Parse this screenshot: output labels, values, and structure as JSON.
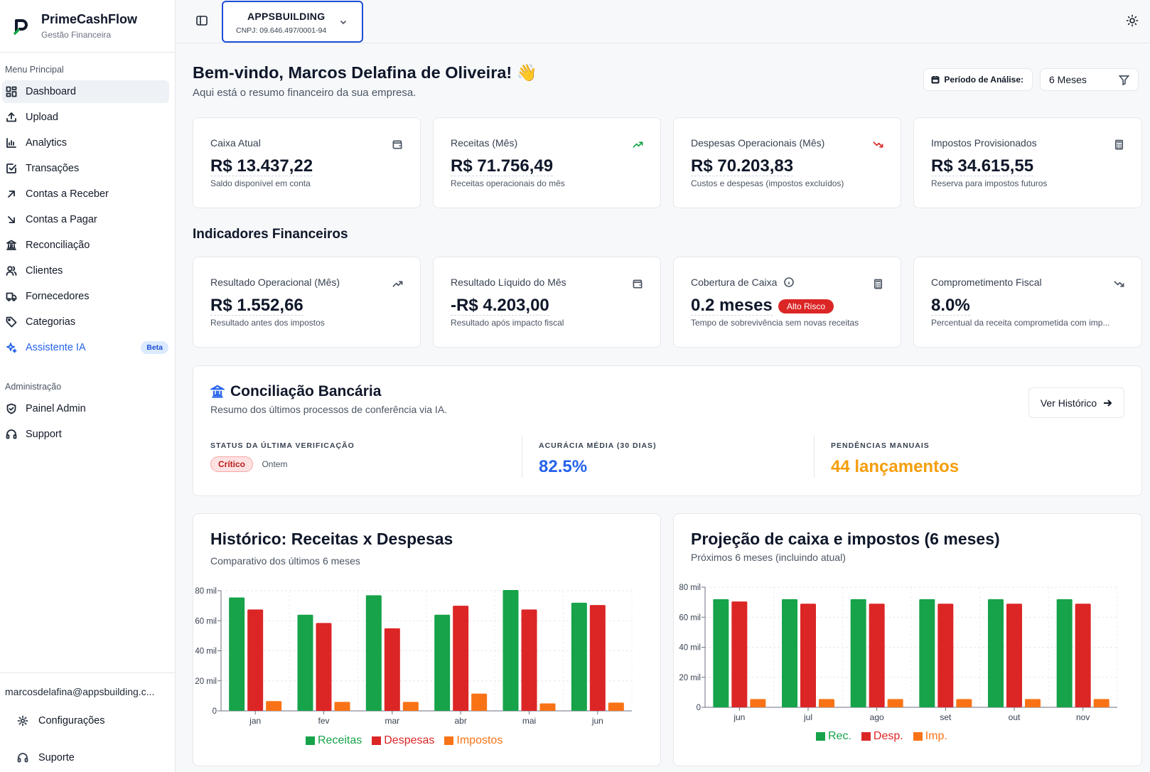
{
  "brand": {
    "name": "PrimeCashFlow",
    "subtitle": "Gestão Financeira"
  },
  "sidebar": {
    "menu_title": "Menu Principal",
    "items": [
      {
        "label": "Dashboard",
        "icon": "dashboard-icon"
      },
      {
        "label": "Upload",
        "icon": "upload-icon"
      },
      {
        "label": "Analytics",
        "icon": "bar-chart-icon"
      },
      {
        "label": "Transações",
        "icon": "checkbox-icon"
      },
      {
        "label": "Contas a Receber",
        "icon": "arrow-up-right-icon"
      },
      {
        "label": "Contas a Pagar",
        "icon": "arrow-down-right-icon"
      },
      {
        "label": "Reconciliação",
        "icon": "bank-icon"
      },
      {
        "label": "Clientes",
        "icon": "users-icon"
      },
      {
        "label": "Fornecedores",
        "icon": "truck-icon"
      },
      {
        "label": "Categorias",
        "icon": "tag-icon"
      },
      {
        "label": "Assistente IA",
        "icon": "sparkles-icon",
        "badge": "Beta"
      }
    ],
    "admin_title": "Administração",
    "admin_items": [
      {
        "label": "Painel Admin",
        "icon": "shield-icon"
      },
      {
        "label": "Support",
        "icon": "headset-icon"
      }
    ],
    "user_email": "marcosdelafina@appsbuilding.c...",
    "footer_items": [
      {
        "label": "Configurações",
        "icon": "gear-icon"
      },
      {
        "label": "Suporte",
        "icon": "headset-icon"
      }
    ]
  },
  "topbar": {
    "company": "APPSBUILDING",
    "cnpj": "CNPJ: 09.646.497/0001-94"
  },
  "welcome": {
    "title": "Bem-vindo, Marcos Delafina de Oliveira! 👋",
    "subtitle": "Aqui está o resumo financeiro da sua empresa."
  },
  "period": {
    "label": "Período de Análise:",
    "value": "6 Meses"
  },
  "kpis": [
    {
      "title": "Caixa Atual",
      "value": "R$ 13.437,22",
      "sub": "Saldo disponível em conta",
      "icon": "wallet-icon"
    },
    {
      "title": "Receitas (Mês)",
      "value": "R$ 71.756,49",
      "sub": "Receitas operacionais do mês",
      "icon": "trending-up-icon"
    },
    {
      "title": "Despesas Operacionais (Mês)",
      "value": "R$ 70.203,83",
      "sub": "Custos e despesas (impostos excluídos)",
      "icon": "trending-down-icon"
    },
    {
      "title": "Impostos Provisionados",
      "value": "R$ 34.615,55",
      "sub": "Reserva para impostos futuros",
      "icon": "calculator-icon"
    }
  ],
  "indicators_title": "Indicadores Financeiros",
  "indicators": [
    {
      "title": "Resultado Operacional (Mês)",
      "value": "R$ 1.552,66",
      "sub": "Resultado antes dos impostos",
      "icon": "trending-up-icon"
    },
    {
      "title": "Resultado Líquido do Mês",
      "value": "-R$ 4.203,00",
      "sub": "Resultado após impacto fiscal",
      "icon": "wallet-icon"
    },
    {
      "title": "Cobertura de Caixa",
      "value": "0.2 meses",
      "badge": "Alto Risco",
      "sub": "Tempo de sobrevivência sem novas receitas",
      "icon": "calculator-icon"
    },
    {
      "title": "Comprometimento Fiscal",
      "value": "8.0%",
      "sub": "Percentual da receita comprometida com imp...",
      "icon": "trending-down-icon"
    }
  ],
  "reconciliation": {
    "title": "Conciliação Bancária",
    "subtitle": "Resumo dos últimos processos de conferência via IA.",
    "button": "Ver Histórico",
    "status_label": "STATUS DA ÚLTIMA VERIFICAÇÃO",
    "status_badge": "Crítico",
    "status_when": "Ontem",
    "accuracy_label": "ACURÁCIA MÉDIA (30 DIAS)",
    "accuracy_value": "82.5%",
    "pending_label": "PENDÊNCIAS MANUAIS",
    "pending_value": "44 lançamentos"
  },
  "colors": {
    "receitas": "#16a34a",
    "despesas": "#dc2626",
    "impostos": "#f97316",
    "accent": "#2563eb",
    "pending": "#f59e0b"
  },
  "chart_data": [
    {
      "type": "bar",
      "title": "Histórico: Receitas x Despesas",
      "subtitle": "Comparativo dos últimos 6 meses",
      "categories": [
        "jan",
        "fev",
        "mar",
        "abr",
        "mai",
        "jun"
      ],
      "yticks": [
        "0",
        "20 mil",
        "40 mil",
        "60 mil",
        "80 mil"
      ],
      "ylim": [
        0,
        80000
      ],
      "series": [
        {
          "name": "Receitas",
          "color": "#16a34a",
          "values": [
            75500,
            64000,
            77000,
            64000,
            80500,
            72000
          ]
        },
        {
          "name": "Despesas",
          "color": "#dc2626",
          "values": [
            67500,
            58500,
            55000,
            70000,
            67500,
            70500
          ]
        },
        {
          "name": "Impostos",
          "color": "#f97316",
          "values": [
            6500,
            6000,
            6000,
            11500,
            5000,
            5500
          ]
        }
      ]
    },
    {
      "type": "bar",
      "title": "Projeção de caixa e impostos (6 meses)",
      "subtitle": "Próximos 6 meses (incluindo atual)",
      "categories": [
        "jun",
        "jul",
        "ago",
        "set",
        "out",
        "nov"
      ],
      "yticks": [
        "0",
        "20 mil",
        "40 mil",
        "60 mil",
        "80 mil"
      ],
      "ylim": [
        0,
        80000
      ],
      "series": [
        {
          "name": "Rec.",
          "color": "#16a34a",
          "values": [
            72000,
            72000,
            72000,
            72000,
            72000,
            72000
          ]
        },
        {
          "name": "Desp.",
          "color": "#dc2626",
          "values": [
            70500,
            69000,
            69000,
            69000,
            69000,
            69000
          ]
        },
        {
          "name": "Imp.",
          "color": "#f97316",
          "values": [
            5500,
            5500,
            5500,
            5500,
            5500,
            5500
          ]
        }
      ]
    }
  ]
}
